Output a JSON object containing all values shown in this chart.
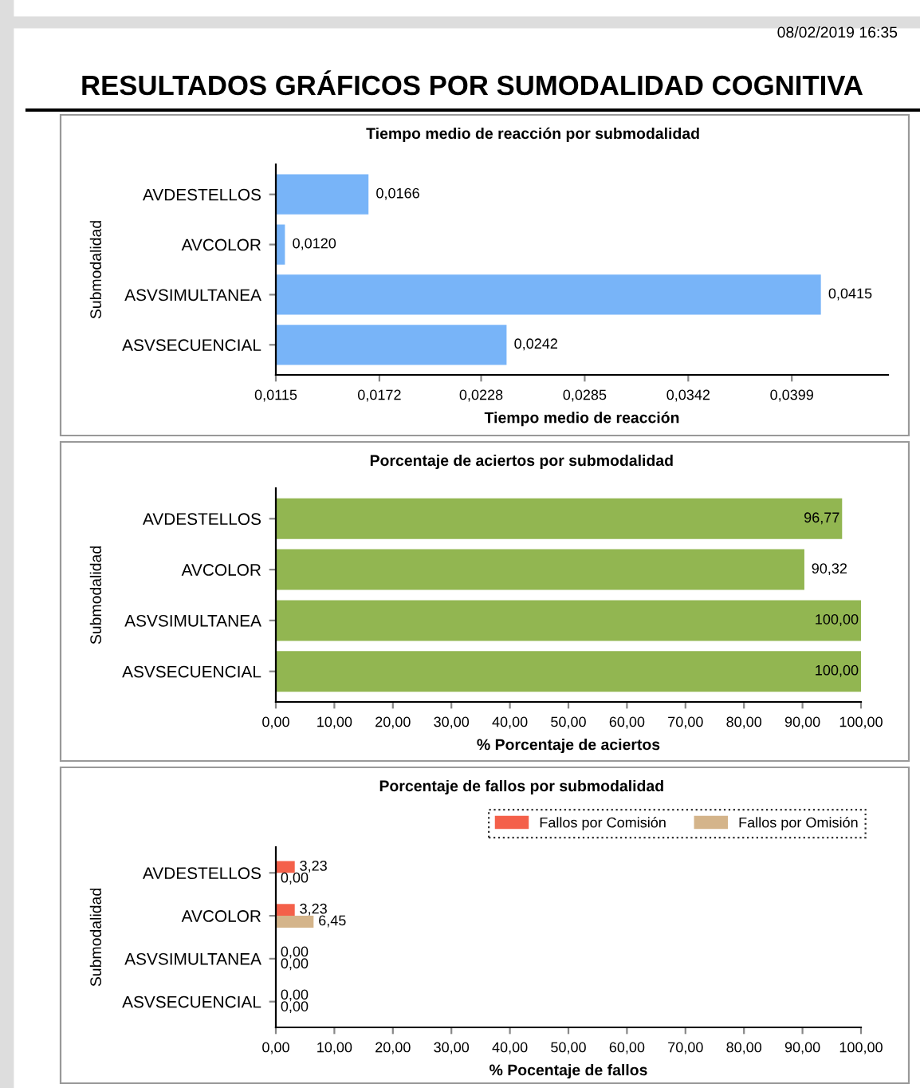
{
  "chart_data": [
    {
      "type": "bar",
      "orientation": "horizontal",
      "title": "Tiempo medio de reacción por submodalidad",
      "xlabel": "Tiempo medio de reacción",
      "ylabel": "Submodalidad",
      "annotations": [
        "08/02/2019 16:35",
        "RESULTADOS GRÁFICOS POR SUMODALIDAD COGNITIVA"
      ],
      "categories": [
        "AVDESTELLOS",
        "AVCOLOR",
        "ASVSIMULTANEA",
        "ASVSECUENCIAL"
      ],
      "series": [
        {
          "color": "#78b4f8",
          "values": [
            0.0166,
            0.012,
            0.0415,
            0.0242
          ],
          "value_labels": [
            "0,0166",
            "0,0120",
            "0,0415",
            "0,0242"
          ]
        }
      ],
      "xlim": [
        0.0115,
        0.0452
      ],
      "xticks": [
        {
          "value": 0.0115,
          "label": "0,0115"
        },
        {
          "value": 0.0172,
          "label": "0,0172"
        },
        {
          "value": 0.0228,
          "label": "0,0228"
        },
        {
          "value": 0.0285,
          "label": "0,0285"
        },
        {
          "value": 0.0342,
          "label": "0,0342"
        },
        {
          "value": 0.0399,
          "label": "0,0399"
        }
      ],
      "grid": false,
      "legend": false
    },
    {
      "type": "bar",
      "orientation": "horizontal",
      "title": "Porcentaje de aciertos por submodalidad",
      "xlabel": "% Porcentaje de aciertos",
      "ylabel": "Submodalidad",
      "categories": [
        "AVDESTELLOS",
        "AVCOLOR",
        "ASVSIMULTANEA",
        "ASVSECUENCIAL"
      ],
      "series": [
        {
          "color": "#92b651",
          "values": [
            96.77,
            90.32,
            100,
            100
          ],
          "value_labels": [
            "96,77",
            "90,32",
            "100,00",
            "100,00"
          ]
        }
      ],
      "xlim": [
        0,
        100
      ],
      "xticks": [
        {
          "value": 0,
          "label": "0,00"
        },
        {
          "value": 10,
          "label": "10,00"
        },
        {
          "value": 20,
          "label": "20,00"
        },
        {
          "value": 30,
          "label": "30,00"
        },
        {
          "value": 40,
          "label": "40,00"
        },
        {
          "value": 50,
          "label": "50,00"
        },
        {
          "value": 60,
          "label": "60,00"
        },
        {
          "value": 70,
          "label": "70,00"
        },
        {
          "value": 80,
          "label": "80,00"
        },
        {
          "value": 90,
          "label": "90,00"
        },
        {
          "value": 100,
          "label": "100,00"
        }
      ],
      "grid": false,
      "legend": false
    },
    {
      "type": "bar",
      "orientation": "horizontal",
      "title": "Porcentaje de fallos por submodalidad",
      "xlabel": "% Pocentaje de fallos",
      "ylabel": "Submodalidad",
      "categories": [
        "AVDESTELLOS",
        "AVCOLOR",
        "ASVSIMULTANEA",
        "ASVSECUENCIAL"
      ],
      "series": [
        {
          "name": "Fallos por Comisión",
          "color": "#f4604a",
          "values": [
            3.23,
            3.23,
            0,
            0
          ],
          "value_labels": [
            "3,23",
            "3,23",
            "0,00",
            "0,00"
          ]
        },
        {
          "name": "Fallos por Omisión",
          "color": "#d4b48a",
          "values": [
            0,
            6.45,
            0,
            0
          ],
          "value_labels": [
            "0,00",
            "6,45",
            "0,00",
            "0,00"
          ]
        }
      ],
      "xlim": [
        0,
        100
      ],
      "xticks": [
        {
          "value": 0,
          "label": "0,00"
        },
        {
          "value": 10,
          "label": "10,00"
        },
        {
          "value": 20,
          "label": "20,00"
        },
        {
          "value": 30,
          "label": "30,00"
        },
        {
          "value": 40,
          "label": "40,00"
        },
        {
          "value": 50,
          "label": "50,00"
        },
        {
          "value": 60,
          "label": "60,00"
        },
        {
          "value": 70,
          "label": "70,00"
        },
        {
          "value": 80,
          "label": "80,00"
        },
        {
          "value": 90,
          "label": "90,00"
        },
        {
          "value": 100,
          "label": "100,00"
        }
      ],
      "grid": false,
      "legend": "top right"
    }
  ]
}
